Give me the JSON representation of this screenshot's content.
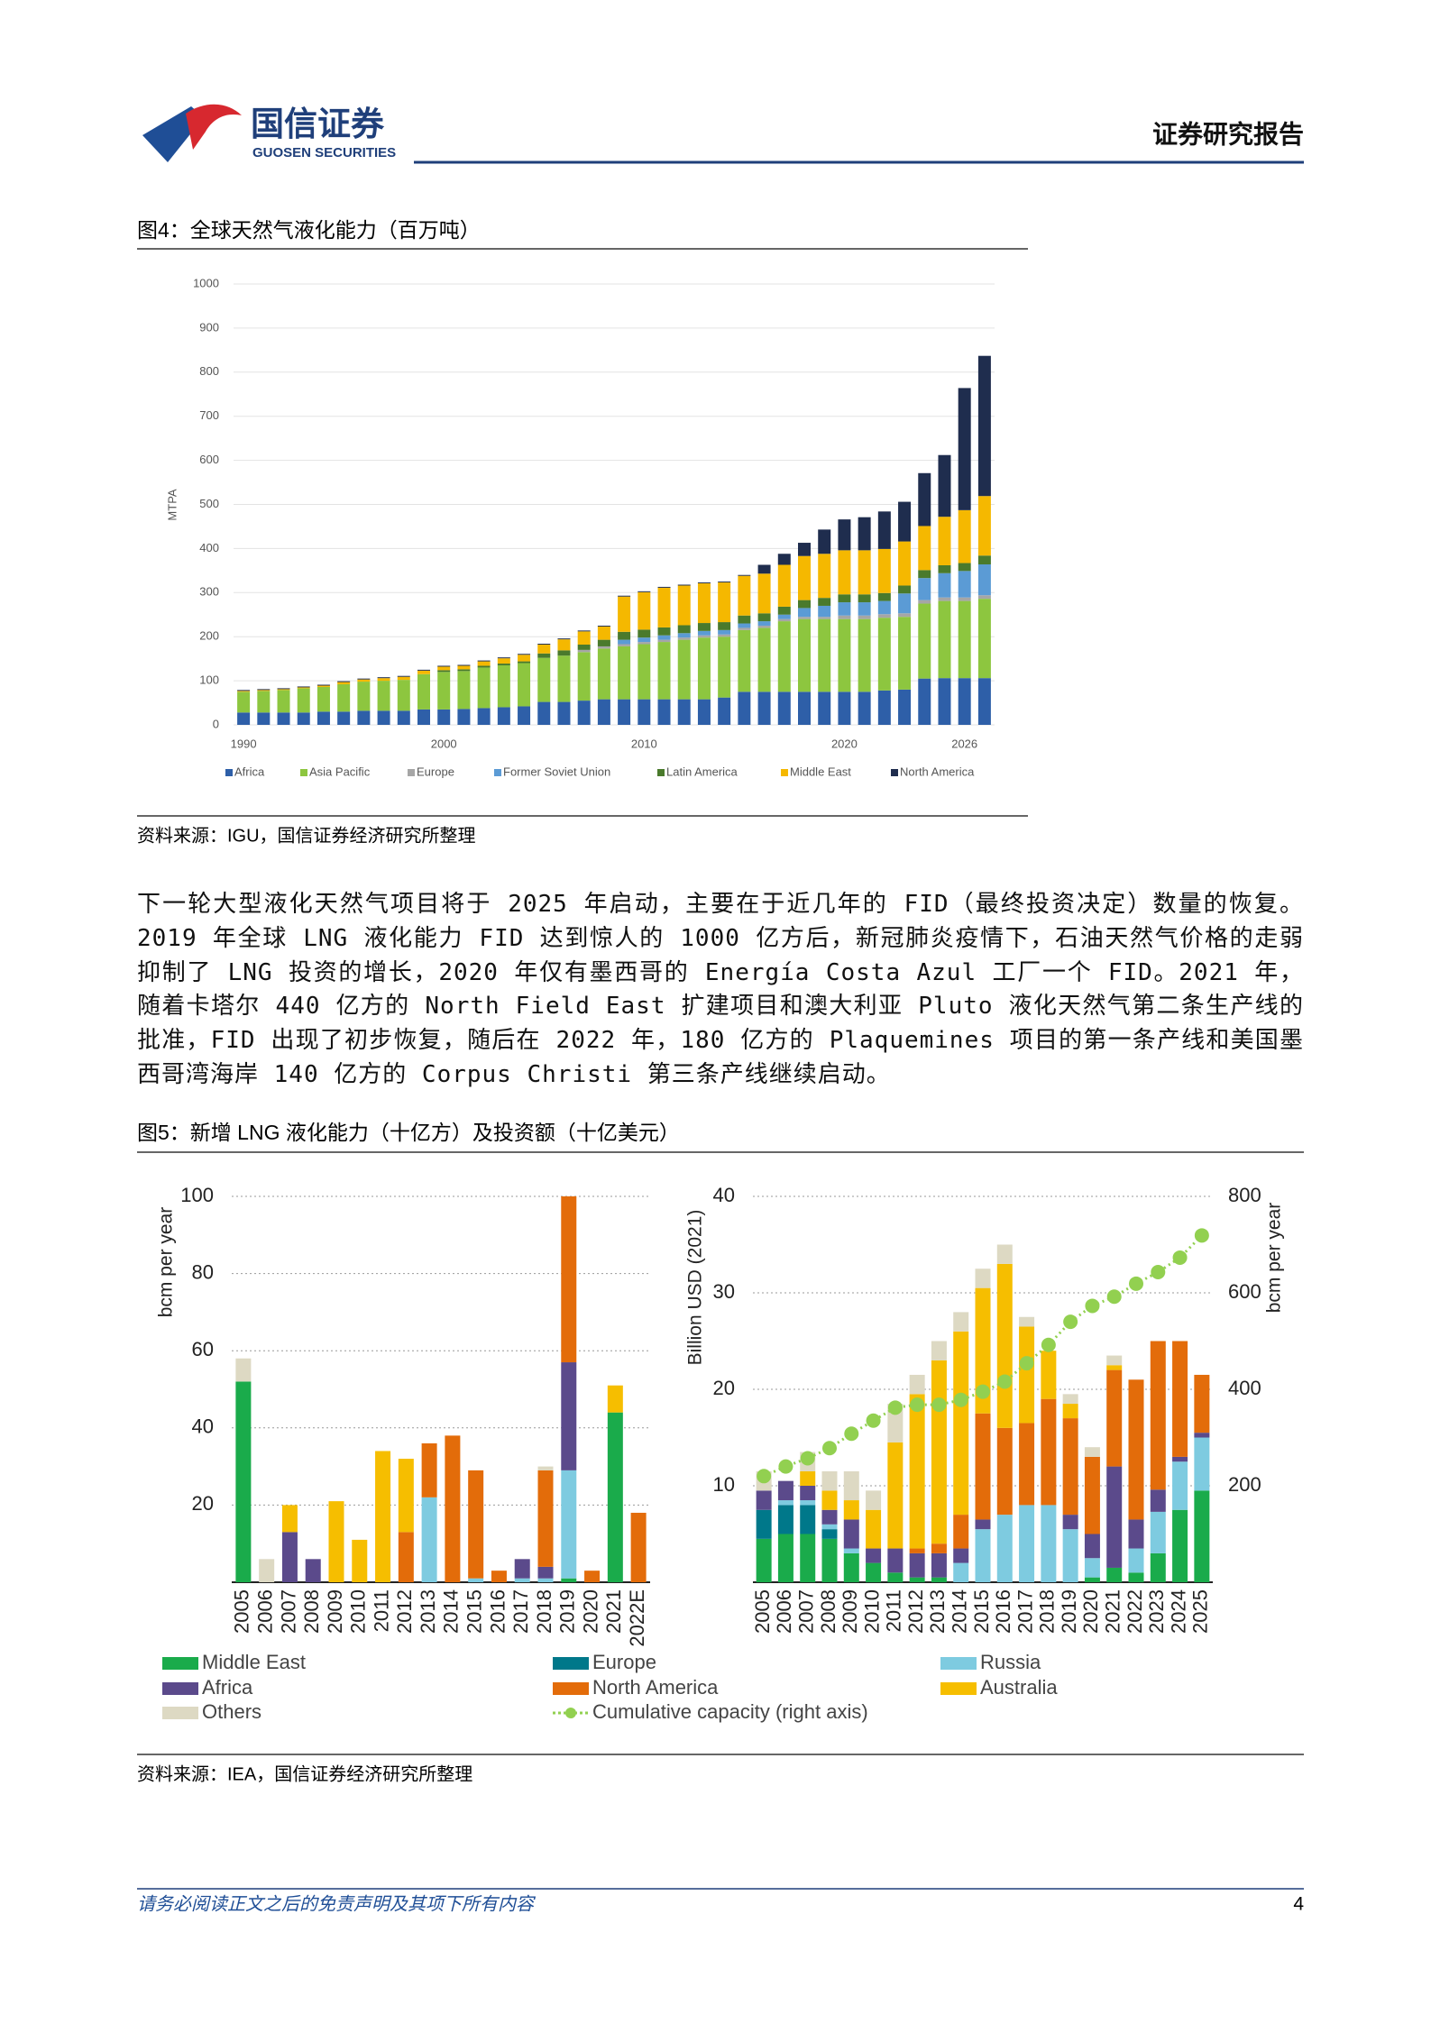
{
  "header": {
    "company_cn": "国信证券",
    "company_en": "GUOSEN SECURITIES",
    "report_type": "证券研究报告"
  },
  "figures": [
    {
      "title": "图4：全球天然气液化能力（百万吨）",
      "source": "资料来源：IGU，国信证券经济研究所整理"
    },
    {
      "title": "图5：新增 LNG 液化能力（十亿方）及投资额（十亿美元）",
      "source": "资料来源：IEA，国信证券经济研究所整理"
    }
  ],
  "paragraph": "下一轮大型液化天然气项目将于 2025 年启动，主要在于近几年的 FID（最终投资决定）数量的恢复。2019 年全球 LNG 液化能力 FID 达到惊人的 1000 亿方后，新冠肺炎疫情下，石油天然气价格的走弱抑制了 LNG 投资的增长，2020 年仅有墨西哥的 Energía Costa Azul 工厂一个 FID。2021 年，随着卡塔尔 440 亿方的 North Field East 扩建项目和澳大利亚 Pluto 液化天然气第二条生产线的批准，FID 出现了初步恢复，随后在 2022 年，180 亿方的 Plaquemines 项目的第一条产线和美国墨西哥湾海岸 140 亿方的 Corpus Christi 第三条产线继续启动。",
  "chart_data": [
    {
      "type": "bar",
      "stacked": true,
      "ylabel": "MTPA",
      "categories": [
        "1990",
        null,
        null,
        null,
        null,
        null,
        null,
        null,
        null,
        null,
        "2000",
        null,
        null,
        null,
        null,
        null,
        null,
        null,
        null,
        null,
        "2010",
        null,
        null,
        null,
        null,
        null,
        null,
        null,
        null,
        null,
        "2020",
        null,
        null,
        null,
        null,
        null,
        "2026",
        null
      ],
      "ylim": [
        0,
        1000
      ],
      "yticks": [
        0,
        100,
        200,
        300,
        400,
        500,
        600,
        700,
        800,
        900,
        1000
      ],
      "grid": true,
      "legend": "bottom",
      "series": [
        {
          "name": "Africa",
          "color": "#2e5fa8",
          "values": [
            28,
            28,
            28,
            28,
            30,
            30,
            32,
            32,
            32,
            35,
            35,
            36,
            38,
            40,
            42,
            52,
            52,
            55,
            58,
            58,
            58,
            58,
            58,
            58,
            62,
            75,
            75,
            75,
            75,
            75,
            75,
            75,
            78,
            80,
            105,
            106,
            106,
            106
          ]
        },
        {
          "name": "Asia Pacific",
          "color": "#8dc63f",
          "values": [
            47,
            49,
            51,
            55,
            56,
            62,
            66,
            68,
            70,
            80,
            85,
            86,
            92,
            95,
            98,
            100,
            105,
            110,
            115,
            120,
            125,
            130,
            135,
            140,
            138,
            140,
            145,
            160,
            165,
            165,
            165,
            165,
            165,
            165,
            170,
            175,
            175,
            180
          ]
        },
        {
          "name": "Europe",
          "color": "#a6a6a6",
          "values": [
            0,
            0,
            0,
            0,
            0,
            0,
            0,
            0,
            0,
            0,
            0,
            0,
            0,
            0,
            0,
            0,
            0,
            5,
            5,
            5,
            5,
            5,
            5,
            5,
            5,
            5,
            5,
            5,
            5,
            5,
            8,
            8,
            8,
            8,
            8,
            8,
            8,
            8
          ]
        },
        {
          "name": "Former Soviet Union",
          "color": "#5b9bd5",
          "values": [
            0,
            0,
            0,
            0,
            0,
            0,
            0,
            0,
            0,
            0,
            0,
            0,
            0,
            0,
            0,
            0,
            0,
            0,
            0,
            10,
            10,
            10,
            10,
            10,
            10,
            10,
            10,
            10,
            20,
            25,
            30,
            30,
            30,
            45,
            50,
            55,
            60,
            70
          ]
        },
        {
          "name": "Latin America",
          "color": "#4a7a2c",
          "values": [
            0,
            0,
            0,
            0,
            0,
            0,
            0,
            0,
            0,
            0,
            4,
            4,
            4,
            4,
            4,
            10,
            12,
            12,
            15,
            18,
            18,
            18,
            18,
            18,
            18,
            18,
            18,
            18,
            18,
            18,
            18,
            18,
            18,
            18,
            18,
            18,
            18,
            20
          ]
        },
        {
          "name": "Middle East",
          "color": "#f5b800",
          "values": [
            2,
            2,
            2,
            2,
            3,
            5,
            5,
            6,
            7,
            8,
            8,
            8,
            10,
            12,
            15,
            20,
            25,
            30,
            30,
            80,
            85,
            90,
            90,
            90,
            90,
            90,
            90,
            95,
            100,
            100,
            100,
            100,
            100,
            100,
            100,
            110,
            120,
            135
          ]
        },
        {
          "name": "North America",
          "color": "#1f2d4e",
          "values": [
            2,
            2,
            2,
            2,
            2,
            2,
            2,
            2,
            2,
            2,
            2,
            2,
            2,
            2,
            2,
            2,
            2,
            2,
            2,
            2,
            2,
            2,
            2,
            2,
            2,
            2,
            20,
            25,
            30,
            55,
            70,
            75,
            85,
            90,
            120,
            140,
            277,
            318
          ]
        }
      ]
    },
    {
      "type": "bar",
      "stacked": true,
      "ylabel": "bcm per year",
      "categories": [
        "2005",
        "2006",
        "2007",
        "2008",
        "2009",
        "2010",
        "2011",
        "2012",
        "2013",
        "2014",
        "2015",
        "2016",
        "2017",
        "2018",
        "2019",
        "2020",
        "2021",
        "2022E"
      ],
      "ylim": [
        0,
        100
      ],
      "yticks": [
        20,
        40,
        60,
        80,
        100
      ],
      "grid": true,
      "series": [
        {
          "name": "Middle East",
          "color": "#1aab4b",
          "values": [
            52,
            0,
            0,
            0,
            0,
            0,
            0,
            0,
            0,
            0,
            0,
            0,
            0,
            0,
            1,
            0,
            44,
            0
          ]
        },
        {
          "name": "Europe",
          "color": "#00788a",
          "values": [
            0,
            0,
            0,
            0,
            0,
            0,
            0,
            0,
            0,
            0,
            0,
            0,
            0,
            0,
            0,
            0,
            0,
            0
          ]
        },
        {
          "name": "Russia",
          "color": "#7ecbe0",
          "values": [
            0,
            0,
            0,
            0,
            0,
            0,
            0,
            0,
            22,
            0,
            1,
            0,
            1,
            1,
            28,
            0,
            0,
            0
          ]
        },
        {
          "name": "Africa",
          "color": "#5b4a8b",
          "values": [
            0,
            0,
            13,
            6,
            0,
            0,
            0,
            0,
            0,
            0,
            0,
            0,
            5,
            3,
            28,
            0,
            0,
            0
          ]
        },
        {
          "name": "North America",
          "color": "#e36c0a",
          "values": [
            0,
            0,
            0,
            0,
            0,
            0,
            0,
            13,
            14,
            38,
            28,
            3,
            0,
            25,
            43,
            3,
            0,
            18
          ]
        },
        {
          "name": "Australia",
          "color": "#f6be00",
          "values": [
            0,
            0,
            7,
            0,
            21,
            11,
            34,
            19,
            0,
            0,
            0,
            0,
            0,
            0,
            0,
            0,
            7,
            0
          ]
        },
        {
          "name": "Others",
          "color": "#ddd9c3",
          "values": [
            6,
            6,
            0,
            0,
            0,
            0,
            0,
            0,
            0,
            0,
            0,
            0,
            0,
            1,
            0,
            0,
            0,
            0
          ]
        }
      ]
    },
    {
      "type": "bar",
      "stacked": true,
      "ylabel": "Billion USD (2021)",
      "y2label": "bcm per year",
      "categories": [
        "2005",
        "2006",
        "2007",
        "2008",
        "2009",
        "2010",
        "2011",
        "2012",
        "2013",
        "2014",
        "2015",
        "2016",
        "2017",
        "2018",
        "2019",
        "2020",
        "2021",
        "2022",
        "2023",
        "2024",
        "2025"
      ],
      "ylim": [
        0,
        40
      ],
      "yticks": [
        10,
        20,
        30,
        40
      ],
      "y2lim": [
        0,
        800
      ],
      "y2ticks": [
        200,
        400,
        600,
        800
      ],
      "grid": true,
      "legend": "bottom",
      "series": [
        {
          "name": "Middle East",
          "color": "#1aab4b",
          "values": [
            4.5,
            5,
            5,
            4.5,
            3,
            2,
            1,
            0.5,
            0.5,
            0,
            0,
            0,
            0,
            0,
            0,
            0.5,
            1.5,
            1,
            3,
            7.5,
            9.5
          ]
        },
        {
          "name": "Europe",
          "color": "#00788a",
          "values": [
            3,
            3,
            3,
            1,
            0,
            0,
            0,
            0,
            0,
            0,
            0,
            0,
            0,
            0,
            0,
            0,
            0,
            0,
            0,
            0,
            0
          ]
        },
        {
          "name": "Russia",
          "color": "#7ecbe0",
          "values": [
            0,
            0.5,
            0.5,
            0.5,
            0.5,
            0,
            0,
            0,
            0,
            2,
            5.5,
            7,
            8,
            8,
            5.5,
            2,
            0,
            2.5,
            4.3,
            5,
            5.5
          ]
        },
        {
          "name": "Africa",
          "color": "#5b4a8b",
          "values": [
            2,
            2,
            1.5,
            1.5,
            3,
            1.5,
            2.5,
            2.5,
            2.5,
            1.5,
            1,
            0,
            0,
            0,
            1.5,
            2.5,
            10.5,
            3,
            2.3,
            0.5,
            0.5
          ]
        },
        {
          "name": "North America",
          "color": "#e36c0a",
          "values": [
            0,
            0,
            0,
            0,
            0,
            0,
            0,
            0.5,
            1,
            3.5,
            11,
            9,
            8.5,
            11,
            10,
            8,
            10,
            14.5,
            15.4,
            12,
            6
          ]
        },
        {
          "name": "Australia",
          "color": "#f6be00",
          "values": [
            0,
            0,
            1.5,
            2,
            2,
            4,
            11,
            16,
            19,
            19,
            13,
            17,
            10,
            5,
            1.5,
            0,
            0.5,
            0,
            0,
            0,
            0
          ]
        },
        {
          "name": "Others",
          "color": "#ddd9c3",
          "values": [
            2,
            0,
            2,
            2,
            3,
            2,
            4,
            2,
            2,
            2,
            2,
            2,
            1,
            0,
            1,
            1,
            1,
            0,
            0,
            0,
            0
          ]
        },
        {
          "name": "Cumulative capacity (right axis)",
          "type": "line",
          "axis": "y2",
          "color": "#92d050",
          "values": [
            220,
            240,
            257,
            278,
            308,
            335,
            362,
            368,
            368,
            378,
            395,
            416,
            454,
            492,
            540,
            573,
            592,
            619,
            643,
            673,
            719
          ]
        }
      ]
    }
  ],
  "footer": {
    "disclaimer": "请务必阅读正文之后的免责声明及其项下所有内容",
    "page": 4
  }
}
